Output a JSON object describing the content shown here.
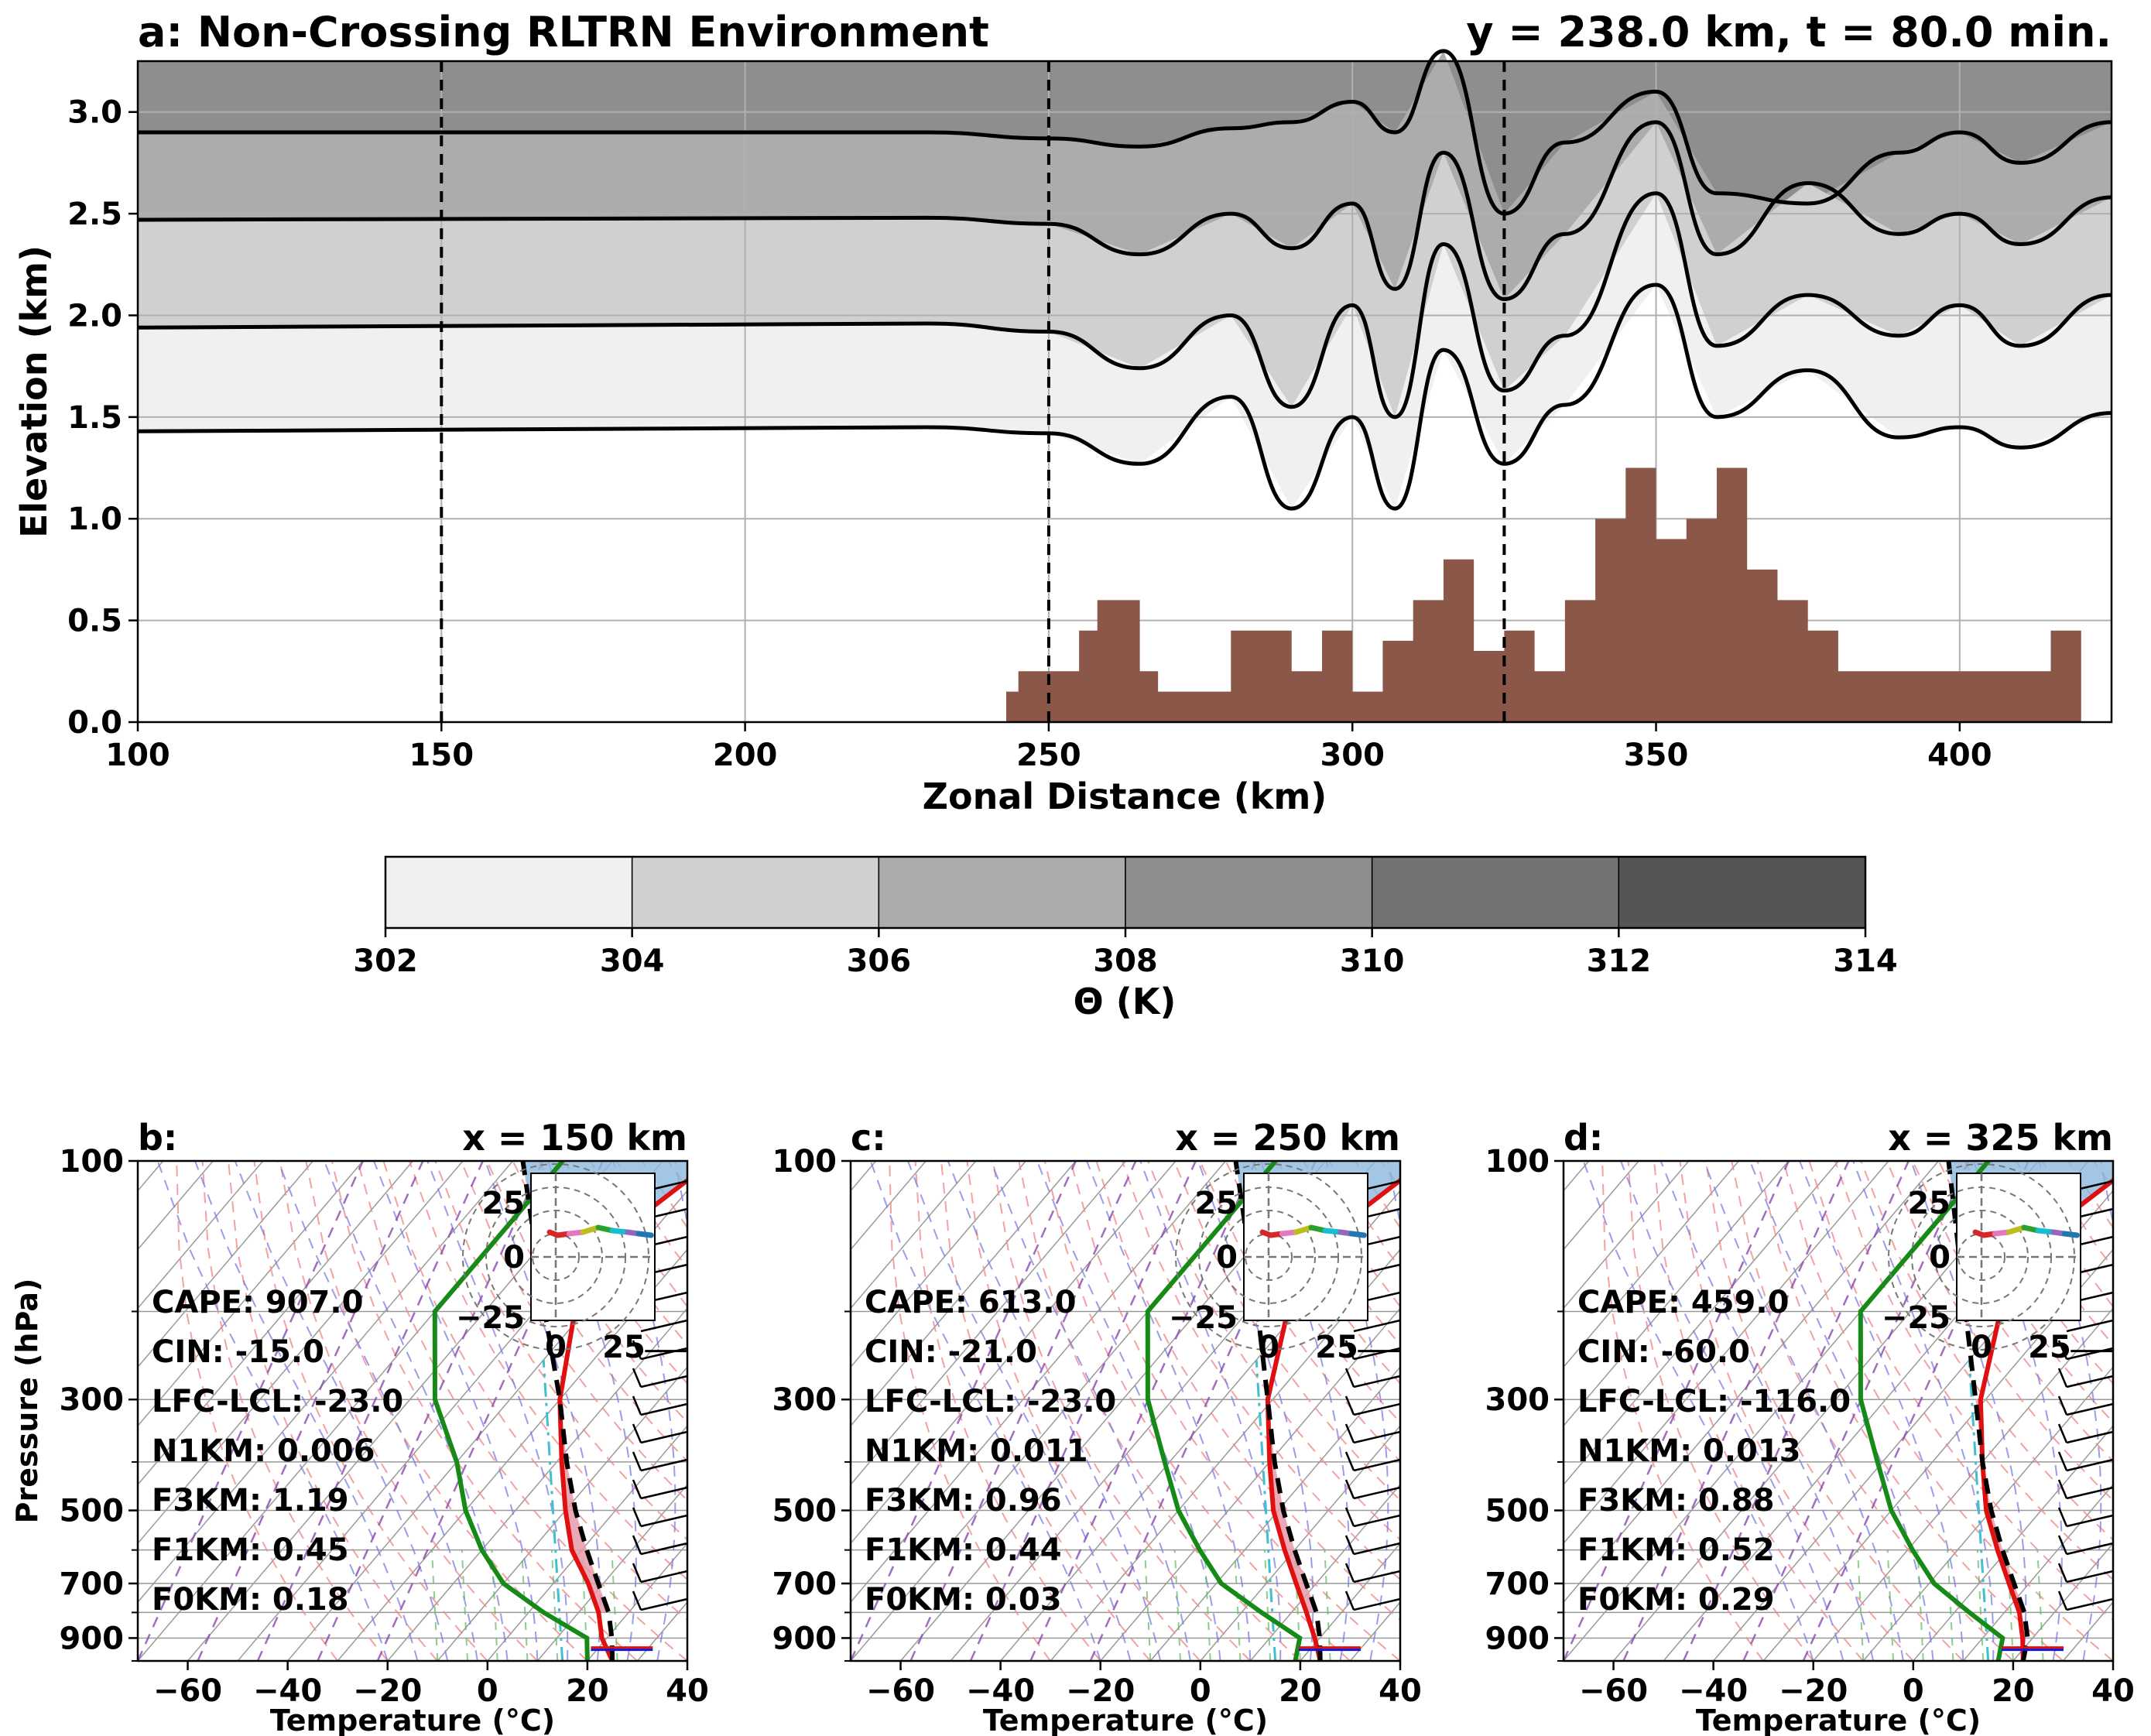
{
  "panel_a": {
    "title_left": "a: Non-Crossing RLTRN Environment",
    "title_right": "y = 238.0 km, t = 80.0 min.",
    "xlabel": "Zonal Distance (km)",
    "ylabel": "Elevation (km)",
    "xlim": [
      100,
      425
    ],
    "ylim": [
      0,
      3.25
    ],
    "xticks": [
      "100",
      "150",
      "200",
      "250",
      "300",
      "350",
      "400"
    ],
    "yticks": [
      "0.0",
      "0.5",
      "1.0",
      "1.5",
      "2.0",
      "2.5",
      "3.0"
    ],
    "dashed_lines_x": [
      150,
      250,
      325
    ]
  },
  "colorbar": {
    "label": "Θ (K)",
    "ticks": [
      "302",
      "304",
      "306",
      "308",
      "310",
      "312",
      "314"
    ],
    "colors": [
      "#f0f0f0",
      "#d0d0d0",
      "#acacac",
      "#8e8e8e",
      "#727272",
      "#555555"
    ]
  },
  "chart_data": [
    {
      "type": "area",
      "description_series": "isentrope contours and terrain",
      "series": [
        {
          "name": "",
          "x": [
            100,
            230,
            250,
            265,
            280,
            290,
            300,
            307,
            315,
            325,
            335,
            350,
            360,
            375,
            390,
            400,
            410,
            425
          ],
          "values": [
            1.43,
            1.45,
            1.42,
            1.27,
            1.6,
            1.05,
            1.5,
            1.05,
            1.83,
            1.27,
            1.56,
            2.15,
            1.5,
            1.73,
            1.4,
            1.45,
            1.35,
            1.52
          ]
        },
        {
          "name": "",
          "x": [
            100,
            230,
            250,
            265,
            280,
            290,
            300,
            307,
            315,
            325,
            335,
            350,
            360,
            375,
            390,
            400,
            410,
            425
          ],
          "values": [
            1.94,
            1.96,
            1.92,
            1.74,
            2.0,
            1.55,
            2.05,
            1.5,
            2.35,
            1.63,
            1.9,
            2.6,
            1.85,
            2.1,
            1.9,
            2.05,
            1.85,
            2.1
          ]
        },
        {
          "name": "",
          "x": [
            100,
            230,
            250,
            265,
            280,
            290,
            300,
            307,
            315,
            325,
            335,
            350,
            360,
            375,
            390,
            400,
            410,
            425
          ],
          "values": [
            2.47,
            2.48,
            2.45,
            2.3,
            2.5,
            2.33,
            2.55,
            2.13,
            2.8,
            2.08,
            2.4,
            2.95,
            2.3,
            2.65,
            2.4,
            2.5,
            2.35,
            2.58
          ]
        },
        {
          "name": "",
          "x": [
            100,
            230,
            250,
            265,
            280,
            290,
            300,
            307,
            315,
            325,
            335,
            350,
            360,
            375,
            390,
            400,
            410,
            425
          ],
          "values": [
            2.9,
            2.9,
            2.87,
            2.83,
            2.92,
            2.95,
            3.05,
            2.9,
            3.3,
            2.5,
            2.85,
            3.1,
            2.6,
            2.55,
            2.8,
            2.9,
            2.75,
            2.95
          ]
        },
        {
          "name": "",
          "x": [
            243,
            245,
            250,
            255,
            258,
            265,
            268,
            275,
            280,
            285,
            290,
            295,
            300,
            305,
            310,
            315,
            320,
            325,
            330,
            335,
            340,
            345,
            350,
            355,
            360,
            365,
            370,
            375,
            380,
            390,
            400,
            410,
            415,
            420
          ],
          "values": [
            0.15,
            0.25,
            0.25,
            0.45,
            0.6,
            0.25,
            0.15,
            0.15,
            0.45,
            0.45,
            0.25,
            0.45,
            0.15,
            0.4,
            0.6,
            0.8,
            0.35,
            0.45,
            0.25,
            0.6,
            1.0,
            1.25,
            0.9,
            1.0,
            1.25,
            0.75,
            0.6,
            0.45,
            0.25,
            0.25,
            0.25,
            0.25,
            0.45,
            0.1
          ]
        }
      ],
      "xlabel": "Zonal Distance (km)",
      "ylabel": "Elevation (km)",
      "xlim": [
        100,
        425
      ],
      "ylim": [
        0,
        3.25
      ]
    },
    {
      "type": "line",
      "title": "b:",
      "subtitle": "x = 150 km",
      "xlabel": "Temperature (°C)",
      "ylabel": "Pressure (hPa)",
      "x_ticks": [
        "−60",
        "−40",
        "−20",
        "0",
        "20",
        "40"
      ],
      "p_ticks": [
        "100",
        "300",
        "500",
        "700",
        "900"
      ],
      "stats": [
        "CAPE: 907.0",
        "CIN: -15.0",
        "LFC-LCL: -23.0",
        "N1KM: 0.006",
        "F3KM: 1.19",
        "F1KM: 0.45",
        "F0KM: 0.18"
      ],
      "hodo_ticks": [
        "25",
        "0",
        "−25"
      ],
      "hodo_xticks": [
        "0",
        "25"
      ]
    },
    {
      "type": "line",
      "title": "c:",
      "subtitle": "x = 250 km",
      "xlabel": "Temperature (°C)",
      "x_ticks": [
        "−60",
        "−40",
        "−20",
        "0",
        "20",
        "40"
      ],
      "p_ticks": [
        "100",
        "300",
        "500",
        "700",
        "900"
      ],
      "stats": [
        "CAPE: 613.0",
        "CIN: -21.0",
        "LFC-LCL: -23.0",
        "N1KM: 0.011",
        "F3KM: 0.96",
        "F1KM: 0.44",
        "F0KM: 0.03"
      ],
      "hodo_ticks": [
        "25",
        "0",
        "−25"
      ],
      "hodo_xticks": [
        "0",
        "25"
      ]
    },
    {
      "type": "line",
      "title": "d:",
      "subtitle": "x = 325 km",
      "xlabel": "Temperature (°C)",
      "x_ticks": [
        "−60",
        "−40",
        "−20",
        "0",
        "20",
        "40"
      ],
      "p_ticks": [
        "100",
        "300",
        "500",
        "700",
        "900"
      ],
      "stats": [
        "CAPE: 459.0",
        "CIN: -60.0",
        "LFC-LCL: -116.0",
        "N1KM: 0.013",
        "F3KM: 0.88",
        "F1KM: 0.52",
        "F0KM: 0.29"
      ],
      "hodo_ticks": [
        "25",
        "0",
        "−25"
      ],
      "hodo_xticks": [
        "0",
        "25"
      ]
    }
  ]
}
